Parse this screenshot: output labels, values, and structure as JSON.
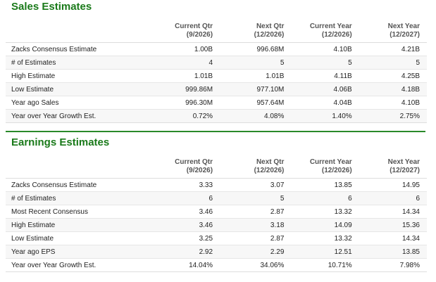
{
  "sales": {
    "title": "Sales Estimates",
    "columns": [
      {
        "line1": "Current Qtr",
        "line2": "(9/2026)"
      },
      {
        "line1": "Next Qtr",
        "line2": "(12/2026)"
      },
      {
        "line1": "Current Year",
        "line2": "(12/2026)"
      },
      {
        "line1": "Next Year",
        "line2": "(12/2027)"
      }
    ],
    "rows": [
      {
        "label": "Zacks Consensus Estimate",
        "values": [
          "1.00B",
          "996.68M",
          "4.10B",
          "4.21B"
        ]
      },
      {
        "label": "# of Estimates",
        "values": [
          "4",
          "5",
          "5",
          "5"
        ]
      },
      {
        "label": "High Estimate",
        "values": [
          "1.01B",
          "1.01B",
          "4.11B",
          "4.25B"
        ]
      },
      {
        "label": "Low Estimate",
        "values": [
          "999.86M",
          "977.10M",
          "4.06B",
          "4.18B"
        ]
      },
      {
        "label": "Year ago Sales",
        "values": [
          "996.30M",
          "957.64M",
          "4.04B",
          "4.10B"
        ]
      },
      {
        "label": "Year over Year Growth Est.",
        "values": [
          "0.72%",
          "4.08%",
          "1.40%",
          "2.75%"
        ]
      }
    ]
  },
  "earnings": {
    "title": "Earnings Estimates",
    "columns": [
      {
        "line1": "Current Qtr",
        "line2": "(9/2026)"
      },
      {
        "line1": "Next Qtr",
        "line2": "(12/2026)"
      },
      {
        "line1": "Current Year",
        "line2": "(12/2026)"
      },
      {
        "line1": "Next Year",
        "line2": "(12/2027)"
      }
    ],
    "rows": [
      {
        "label": "Zacks Consensus Estimate",
        "values": [
          "3.33",
          "3.07",
          "13.85",
          "14.95"
        ]
      },
      {
        "label": "# of Estimates",
        "values": [
          "6",
          "5",
          "6",
          "6"
        ]
      },
      {
        "label": "Most Recent Consensus",
        "values": [
          "3.46",
          "2.87",
          "13.32",
          "14.34"
        ]
      },
      {
        "label": "High Estimate",
        "values": [
          "3.46",
          "3.18",
          "14.09",
          "15.36"
        ]
      },
      {
        "label": "Low Estimate",
        "values": [
          "3.25",
          "2.87",
          "13.32",
          "14.34"
        ]
      },
      {
        "label": "Year ago EPS",
        "values": [
          "2.92",
          "2.29",
          "12.51",
          "13.85"
        ]
      },
      {
        "label": "Year over Year Growth Est.",
        "values": [
          "14.04%",
          "34.06%",
          "10.71%",
          "7.98%"
        ]
      }
    ]
  },
  "colors": {
    "accent": "#1a7a1a",
    "divider": "#2a8a2a"
  }
}
